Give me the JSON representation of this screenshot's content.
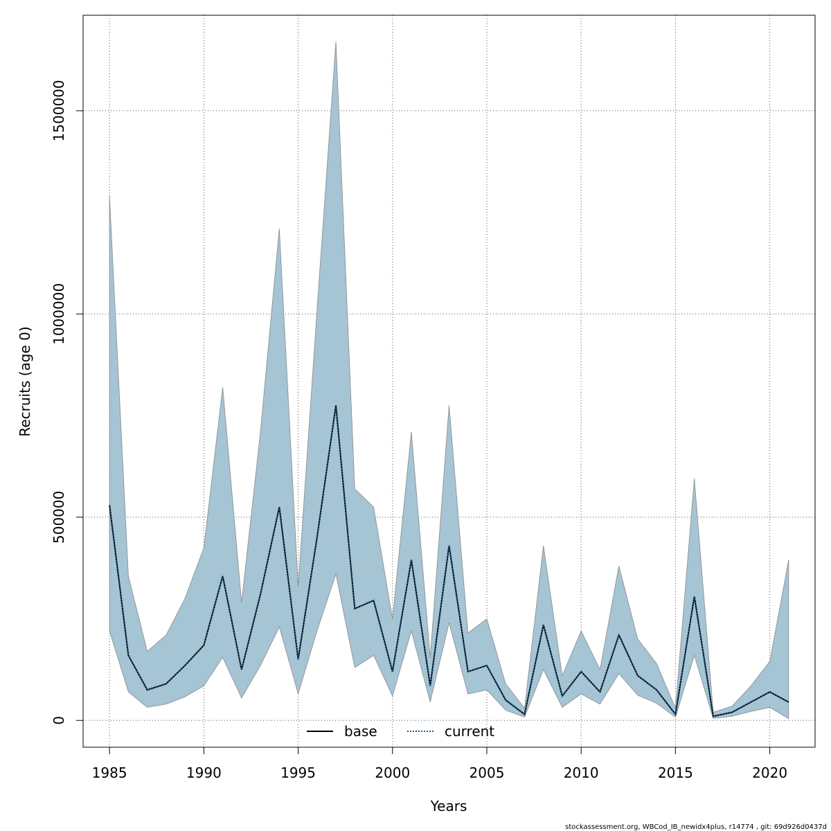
{
  "chart_data": {
    "type": "area",
    "title": "",
    "xlabel": "Years",
    "ylabel": "Recruits (age 0)",
    "xlim": [
      1983.6,
      2022.4
    ],
    "ylim": [
      -66000,
      1735000
    ],
    "xticks": [
      1985,
      1990,
      1995,
      2000,
      2005,
      2010,
      2015,
      2020
    ],
    "xtick_labels": [
      "1985",
      "1990",
      "1995",
      "2000",
      "2005",
      "2010",
      "2015",
      "2020"
    ],
    "yticks": [
      0,
      500000,
      1000000,
      1500000
    ],
    "ytick_labels": [
      "0",
      "500000",
      "1000000",
      "1500000"
    ],
    "grid": true,
    "colors": {
      "band": "#a5c4d4",
      "band_edge": "#8a8a8a",
      "base": "#000000",
      "current": "#1f5a87"
    },
    "x": [
      1985,
      1986,
      1987,
      1988,
      1989,
      1990,
      1991,
      1992,
      1993,
      1994,
      1995,
      1996,
      1997,
      1998,
      1999,
      2000,
      2001,
      2002,
      2003,
      2004,
      2005,
      2006,
      2007,
      2008,
      2009,
      2010,
      2011,
      2012,
      2013,
      2014,
      2015,
      2016,
      2017,
      2018,
      2019,
      2020,
      2021
    ],
    "band_upper": [
      1290000,
      355000,
      170000,
      210000,
      300000,
      425000,
      820000,
      290000,
      710000,
      1210000,
      330000,
      1010000,
      1670000,
      570000,
      525000,
      250000,
      710000,
      155000,
      775000,
      215000,
      250000,
      90000,
      30000,
      430000,
      110000,
      220000,
      125000,
      380000,
      200000,
      140000,
      30000,
      595000,
      20000,
      35000,
      85000,
      145000,
      395000
    ],
    "band_lower": [
      220000,
      70000,
      32000,
      40000,
      58000,
      85000,
      155000,
      55000,
      135000,
      230000,
      65000,
      220000,
      360000,
      130000,
      160000,
      60000,
      220000,
      45000,
      240000,
      65000,
      75000,
      25000,
      8000,
      125000,
      32000,
      65000,
      40000,
      115000,
      62000,
      42000,
      8000,
      160000,
      5000,
      10000,
      22000,
      32000,
      4000
    ],
    "series": [
      {
        "name": "base",
        "values": [
          530000,
          160000,
          75000,
          90000,
          135000,
          185000,
          355000,
          125000,
          310000,
          525000,
          150000,
          450000,
          775000,
          275000,
          295000,
          120000,
          395000,
          85000,
          430000,
          120000,
          135000,
          50000,
          15000,
          235000,
          60000,
          120000,
          70000,
          210000,
          110000,
          75000,
          15000,
          305000,
          10000,
          20000,
          45000,
          70000,
          45000
        ]
      },
      {
        "name": "current",
        "values": [
          530000,
          160000,
          75000,
          90000,
          135000,
          185000,
          355000,
          125000,
          310000,
          525000,
          150000,
          450000,
          775000,
          275000,
          295000,
          120000,
          395000,
          85000,
          430000,
          120000,
          135000,
          50000,
          15000,
          235000,
          60000,
          120000,
          70000,
          210000,
          110000,
          75000,
          15000,
          305000,
          10000,
          20000,
          45000,
          70000,
          45000
        ]
      }
    ],
    "legend_position": "bottom-center",
    "footer": "stockassessment.org, WBCod_IB_newidx4plus, r14774 , git: 69d926d0437d"
  }
}
